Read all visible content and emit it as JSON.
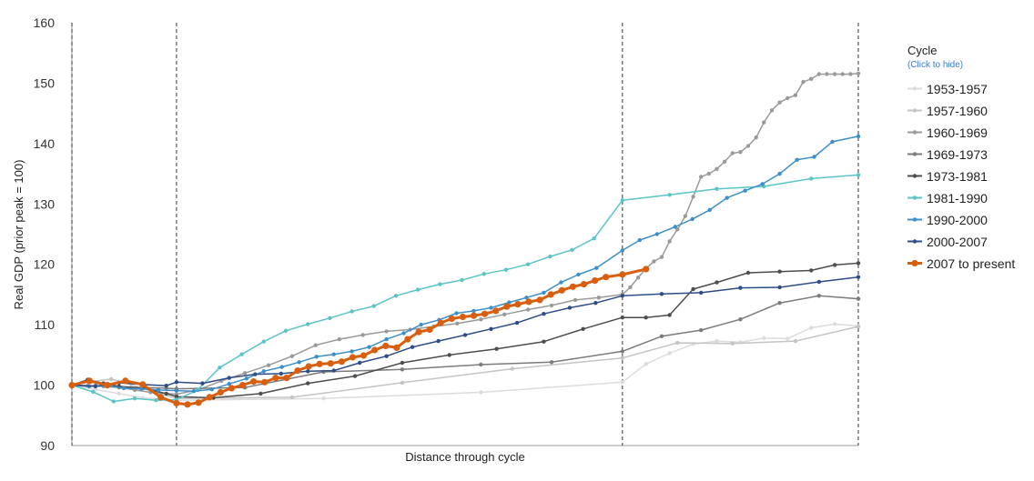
{
  "chart_data": {
    "type": "line",
    "title": "",
    "xlabel": "Distance through cycle",
    "ylabel": "Real GDP (prior peak = 100)",
    "ylim": [
      90,
      160
    ],
    "yticks": [
      "90",
      "100",
      "110",
      "120",
      "130",
      "140",
      "150",
      "160"
    ],
    "xlim": [
      0,
      1
    ],
    "cycle_markers": [
      0,
      0.133,
      0.7,
      1.0
    ],
    "grid": false,
    "legend": {
      "title": "Cycle",
      "subtitle": "(Click to hide)",
      "position": "right"
    },
    "series": [
      {
        "name": "1953-1957",
        "color": "#dcdcdc",
        "width": 1.5,
        "radius": 2.2,
        "x": [
          0,
          0.03,
          0.06,
          0.09,
          0.12,
          0.133,
          0.32,
          0.52,
          0.7,
          0.73,
          0.76,
          0.79,
          0.82,
          0.85,
          0.88,
          0.91,
          0.94,
          0.97,
          1.0
        ],
        "y": [
          100,
          99.3,
          98.6,
          97.9,
          97.6,
          97.5,
          97.8,
          98.8,
          100.5,
          103.5,
          105.3,
          106.8,
          107.3,
          107.1,
          107.8,
          107.7,
          109.5,
          110.1,
          109.8
        ]
      },
      {
        "name": "1957-1960",
        "color": "#c4c4c4",
        "width": 1.5,
        "radius": 2.2,
        "x": [
          0,
          0.025,
          0.05,
          0.075,
          0.1,
          0.133,
          0.28,
          0.42,
          0.56,
          0.7,
          0.77,
          0.84,
          0.92,
          1.0
        ],
        "y": [
          100,
          100.6,
          101.0,
          100.1,
          99.0,
          97.8,
          98.0,
          100.4,
          102.7,
          104.5,
          107.0,
          106.9,
          107.3,
          109.7
        ]
      },
      {
        "name": "1960-1969",
        "color": "#9a9a9a",
        "width": 1.5,
        "radius": 2.2,
        "x": [
          0,
          0.02,
          0.04,
          0.06,
          0.08,
          0.1,
          0.133,
          0.16,
          0.19,
          0.22,
          0.25,
          0.28,
          0.31,
          0.34,
          0.37,
          0.4,
          0.43,
          0.46,
          0.49,
          0.52,
          0.55,
          0.58,
          0.61,
          0.64,
          0.67,
          0.7,
          0.71,
          0.72,
          0.73,
          0.74,
          0.75,
          0.76,
          0.77,
          0.78,
          0.79,
          0.8,
          0.81,
          0.82,
          0.83,
          0.84,
          0.85,
          0.86,
          0.87,
          0.88,
          0.89,
          0.9,
          0.91,
          0.92,
          0.93,
          0.94,
          0.95,
          0.96,
          0.97,
          0.98,
          0.99,
          1.0
        ],
        "y": [
          100,
          99.9,
          99.8,
          99.6,
          99.2,
          98.8,
          98.5,
          99.2,
          100.7,
          102.0,
          103.3,
          104.8,
          106.6,
          107.6,
          108.3,
          108.9,
          109.2,
          109.7,
          110.2,
          110.9,
          111.7,
          112.5,
          113.2,
          114.1,
          114.5,
          115.0,
          116.2,
          117.8,
          119.3,
          120.5,
          121.2,
          123.8,
          125.8,
          128.0,
          131.2,
          134.5,
          135.0,
          135.8,
          137.0,
          138.4,
          138.6,
          139.6,
          141.0,
          143.5,
          145.5,
          146.8,
          147.5,
          148.0,
          150.2,
          150.7,
          151.5,
          151.5,
          151.5,
          151.5,
          151.5,
          151.6
        ]
      },
      {
        "name": "1969-1973",
        "color": "#7b7b7b",
        "width": 1.5,
        "radius": 2.2,
        "x": [
          0,
          0.03,
          0.06,
          0.09,
          0.12,
          0.133,
          0.22,
          0.32,
          0.42,
          0.52,
          0.61,
          0.7,
          0.75,
          0.8,
          0.85,
          0.9,
          0.95,
          1.0
        ],
        "y": [
          100,
          99.9,
          99.7,
          99.6,
          99.5,
          99.4,
          99.6,
          102.2,
          102.6,
          103.4,
          103.8,
          105.6,
          108.1,
          109.1,
          110.9,
          113.6,
          114.8,
          114.3
        ]
      },
      {
        "name": "1973-1981",
        "color": "#4d4d4d",
        "width": 1.5,
        "radius": 2.2,
        "x": [
          0,
          0.02,
          0.04,
          0.06,
          0.09,
          0.12,
          0.133,
          0.18,
          0.24,
          0.3,
          0.36,
          0.42,
          0.48,
          0.54,
          0.6,
          0.65,
          0.7,
          0.73,
          0.76,
          0.79,
          0.82,
          0.86,
          0.9,
          0.94,
          0.97,
          1.0
        ],
        "y": [
          100,
          100.9,
          100.3,
          99.8,
          99.5,
          98.6,
          98.1,
          97.9,
          98.6,
          100.3,
          101.5,
          103.7,
          105.0,
          106.0,
          107.2,
          109.3,
          111.2,
          111.2,
          111.6,
          115.9,
          117.0,
          118.6,
          118.8,
          119.0,
          119.9,
          120.2
        ]
      },
      {
        "name": "1981-1990",
        "color": "#5bc4c7",
        "width": 1.5,
        "radius": 2.2,
        "x": [
          0,
          0.027,
          0.053,
          0.08,
          0.107,
          0.133,
          0.16,
          0.188,
          0.216,
          0.244,
          0.272,
          0.3,
          0.328,
          0.356,
          0.384,
          0.412,
          0.44,
          0.468,
          0.496,
          0.524,
          0.552,
          0.58,
          0.608,
          0.636,
          0.664,
          0.7,
          0.76,
          0.82,
          0.88,
          0.94,
          1.0
        ],
        "y": [
          100,
          98.9,
          97.3,
          97.8,
          97.5,
          97.6,
          99.2,
          102.9,
          105.1,
          107.2,
          109.0,
          110.1,
          111.1,
          112.2,
          113.1,
          114.8,
          115.8,
          116.7,
          117.4,
          118.4,
          119.1,
          120.0,
          121.3,
          122.4,
          124.3,
          130.6,
          131.5,
          132.5,
          132.9,
          134.2,
          134.8
        ]
      },
      {
        "name": "1990-2000",
        "color": "#3d8fc9",
        "width": 1.5,
        "radius": 2.2,
        "x": [
          0,
          0.022,
          0.044,
          0.066,
          0.088,
          0.11,
          0.133,
          0.155,
          0.178,
          0.2,
          0.222,
          0.244,
          0.267,
          0.289,
          0.311,
          0.333,
          0.356,
          0.378,
          0.4,
          0.422,
          0.444,
          0.467,
          0.489,
          0.511,
          0.533,
          0.556,
          0.578,
          0.6,
          0.622,
          0.644,
          0.667,
          0.7,
          0.722,
          0.744,
          0.767,
          0.789,
          0.811,
          0.833,
          0.856,
          0.878,
          0.9,
          0.922,
          0.944,
          0.967,
          1.0
        ],
        "y": [
          100,
          99.8,
          99.9,
          99.5,
          99.4,
          99.2,
          99.1,
          99.0,
          99.3,
          100.2,
          101.1,
          102.3,
          103.0,
          103.8,
          104.7,
          105.1,
          105.6,
          106.3,
          107.6,
          108.6,
          110.0,
          110.8,
          111.9,
          112.3,
          112.8,
          113.7,
          114.5,
          115.3,
          117.0,
          118.3,
          119.4,
          122.3,
          124.0,
          125.0,
          126.2,
          127.5,
          129.0,
          131.0,
          132.2,
          133.3,
          135.0,
          137.3,
          137.8,
          140.3,
          141.2
        ]
      },
      {
        "name": "2000-2007",
        "color": "#2e4c86",
        "width": 1.5,
        "radius": 2.2,
        "x": [
          0,
          0.03,
          0.06,
          0.09,
          0.12,
          0.133,
          0.166,
          0.2,
          0.233,
          0.266,
          0.3,
          0.333,
          0.366,
          0.4,
          0.433,
          0.466,
          0.5,
          0.533,
          0.566,
          0.6,
          0.633,
          0.666,
          0.7,
          0.75,
          0.8,
          0.85,
          0.9,
          0.95,
          1.0
        ],
        "y": [
          100,
          99.8,
          100.4,
          100.1,
          99.9,
          100.5,
          100.3,
          101.2,
          101.8,
          101.9,
          102.3,
          102.4,
          103.7,
          104.8,
          106.3,
          107.3,
          108.3,
          109.3,
          110.3,
          111.8,
          112.8,
          113.6,
          114.8,
          115.1,
          115.3,
          116.1,
          116.2,
          117.1,
          117.9
        ]
      },
      {
        "name": "2007 to present",
        "color": "#d95f10",
        "width": 3,
        "radius": 3.6,
        "x": [
          0,
          0.0225,
          0.045,
          0.068,
          0.09,
          0.113,
          0.133,
          0.147,
          0.161,
          0.175,
          0.189,
          0.203,
          0.217,
          0.231,
          0.245,
          0.259,
          0.273,
          0.287,
          0.301,
          0.315,
          0.329,
          0.343,
          0.357,
          0.371,
          0.385,
          0.399,
          0.413,
          0.427,
          0.441,
          0.455,
          0.469,
          0.483,
          0.497,
          0.511,
          0.525,
          0.539,
          0.553,
          0.567,
          0.581,
          0.595,
          0.609,
          0.623,
          0.637,
          0.651,
          0.665,
          0.679,
          0.7,
          0.73
        ],
        "y": [
          100,
          100.7,
          100.0,
          100.7,
          100.1,
          98.0,
          97.0,
          96.8,
          97.1,
          98.0,
          98.8,
          99.5,
          100.0,
          100.6,
          100.5,
          101.2,
          101.2,
          102.4,
          103.1,
          103.5,
          103.6,
          103.9,
          104.6,
          104.9,
          105.8,
          106.5,
          106.2,
          107.6,
          108.8,
          109.2,
          110.3,
          111.0,
          111.3,
          111.5,
          111.8,
          112.3,
          113.0,
          113.4,
          113.8,
          114.1,
          115.0,
          115.7,
          116.3,
          116.7,
          117.3,
          117.9,
          118.3,
          119.2
        ]
      }
    ]
  }
}
